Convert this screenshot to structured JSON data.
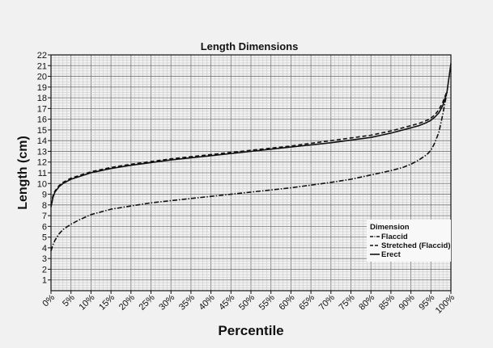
{
  "chart_data": {
    "type": "line",
    "title": "Length Dimensions",
    "xlabel": "Percentile",
    "ylabel": "Length (cm)",
    "xlim": [
      0,
      100
    ],
    "ylim": [
      1,
      22
    ],
    "x_ticks": [
      "0%",
      "5%",
      "10%",
      "15%",
      "20%",
      "25%",
      "30%",
      "35%",
      "40%",
      "45%",
      "50%",
      "55%",
      "60%",
      "65%",
      "70%",
      "75%",
      "80%",
      "85%",
      "90%",
      "95%",
      "100%"
    ],
    "y_ticks": [
      "1",
      "2",
      "3",
      "4",
      "5",
      "6",
      "7",
      "8",
      "9",
      "10",
      "11",
      "12",
      "13",
      "14",
      "15",
      "16",
      "17",
      "18",
      "19",
      "20",
      "21",
      "22"
    ],
    "grid": true,
    "legend": {
      "title": "Dimension",
      "position": "bottom-right",
      "entries": [
        "Flaccid",
        "Stretched (Flaccid)",
        "Erect"
      ]
    },
    "series": [
      {
        "name": "Flaccid",
        "style": "dash-dot",
        "x": [
          0,
          0.5,
          1,
          2,
          3,
          5,
          7,
          10,
          15,
          20,
          25,
          30,
          40,
          50,
          60,
          70,
          75,
          80,
          85,
          88,
          90,
          92,
          94,
          95,
          96,
          97,
          98,
          99
        ],
        "y": [
          3.7,
          4.3,
          4.7,
          5.3,
          5.7,
          6.2,
          6.6,
          7.1,
          7.6,
          7.9,
          8.2,
          8.4,
          8.8,
          9.2,
          9.6,
          10.1,
          10.4,
          10.8,
          11.2,
          11.5,
          11.8,
          12.2,
          12.7,
          13.1,
          13.8,
          14.8,
          16.5,
          18.5
        ]
      },
      {
        "name": "Stretched (Flaccid)",
        "style": "dashed",
        "x": [
          0,
          0.5,
          1,
          2,
          3,
          5,
          10,
          15,
          20,
          30,
          40,
          50,
          60,
          70,
          80,
          85,
          90,
          92,
          94,
          95,
          96,
          97,
          98,
          99
        ],
        "y": [
          8.0,
          8.9,
          9.3,
          9.8,
          10.1,
          10.5,
          11.1,
          11.5,
          11.8,
          12.3,
          12.7,
          13.1,
          13.5,
          14.0,
          14.5,
          14.9,
          15.4,
          15.6,
          15.9,
          16.1,
          16.4,
          16.9,
          17.6,
          18.6
        ]
      },
      {
        "name": "Erect",
        "style": "solid",
        "x": [
          0,
          0.5,
          1,
          2,
          3,
          5,
          10,
          15,
          20,
          30,
          40,
          50,
          60,
          70,
          80,
          85,
          90,
          92,
          94,
          95,
          96,
          97,
          98,
          99,
          100
        ],
        "y": [
          7.8,
          8.7,
          9.2,
          9.7,
          10.0,
          10.4,
          11.0,
          11.4,
          11.7,
          12.2,
          12.6,
          13.0,
          13.4,
          13.8,
          14.3,
          14.7,
          15.2,
          15.4,
          15.7,
          15.9,
          16.2,
          16.6,
          17.3,
          18.5,
          21.2
        ]
      }
    ]
  }
}
